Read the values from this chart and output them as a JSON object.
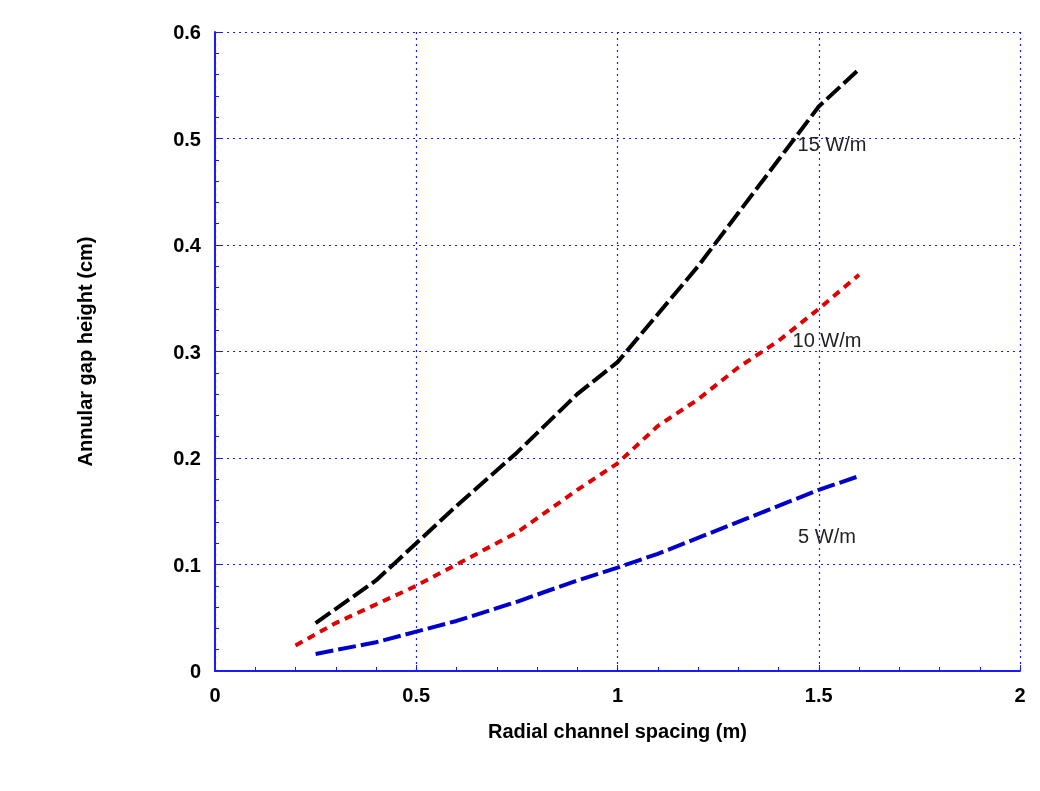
{
  "chart_data": {
    "type": "line",
    "xlabel": "Radial channel spacing (m)",
    "ylabel": "Annular gap height (cm)",
    "xlim": [
      0,
      2
    ],
    "xticks": [
      0,
      0.5,
      1,
      1.5,
      2
    ],
    "ylim": [
      0,
      0.6
    ],
    "yticks": [
      0,
      0.1,
      0.2,
      0.3,
      0.4,
      0.5,
      0.6
    ],
    "grid": true,
    "marker": "none",
    "series": [
      {
        "name": "15 W/m",
        "color": "#000000",
        "line_style": "dashed",
        "x": [
          0.25,
          0.4,
          0.5,
          0.6,
          0.75,
          0.9,
          1.0,
          1.1,
          1.2,
          1.3,
          1.4,
          1.5,
          1.6
        ],
        "values": [
          0.045,
          0.085,
          0.12,
          0.155,
          0.205,
          0.26,
          0.29,
          0.335,
          0.38,
          0.43,
          0.48,
          0.53,
          0.565
        ]
      },
      {
        "name": "10 W/m",
        "color": "#e00000",
        "line_style": "dotted",
        "x": [
          0.2,
          0.3,
          0.5,
          0.6,
          0.75,
          0.9,
          1.0,
          1.1,
          1.2,
          1.3,
          1.4,
          1.5,
          1.6
        ],
        "values": [
          0.024,
          0.045,
          0.08,
          0.1,
          0.13,
          0.17,
          0.195,
          0.23,
          0.255,
          0.285,
          0.31,
          0.34,
          0.372
        ]
      },
      {
        "name": "5 W/m",
        "color": "#0000cc",
        "line_style": "dashed",
        "x": [
          0.25,
          0.4,
          0.5,
          0.6,
          0.75,
          0.9,
          1.0,
          1.1,
          1.2,
          1.3,
          1.4,
          1.5,
          1.6
        ],
        "values": [
          0.016,
          0.027,
          0.037,
          0.047,
          0.065,
          0.085,
          0.097,
          0.11,
          0.125,
          0.14,
          0.155,
          0.17,
          0.183
        ]
      }
    ]
  }
}
